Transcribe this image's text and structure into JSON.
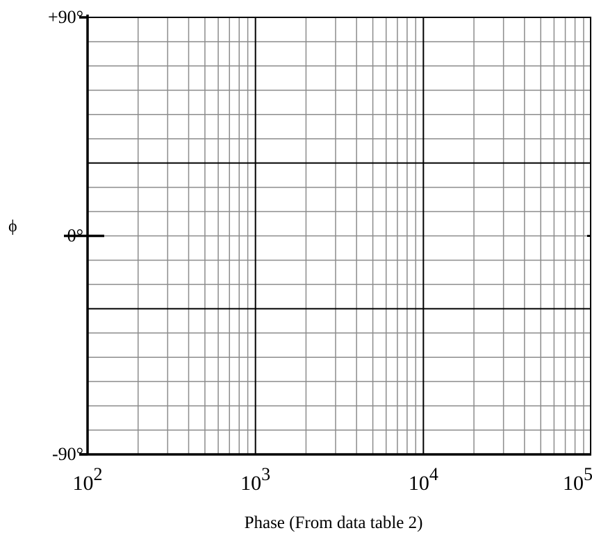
{
  "chart_data": {
    "type": "line",
    "title": "",
    "xlabel": "Phase (From data table 2)",
    "ylabel": "ϕ",
    "x_scale": "log",
    "xlim": [
      100,
      100000
    ],
    "ylim": [
      -90,
      90
    ],
    "grid": true,
    "x_ticks": [
      {
        "value": 100,
        "base": "10",
        "exp": "2"
      },
      {
        "value": 1000,
        "base": "10",
        "exp": "3"
      },
      {
        "value": 10000,
        "base": "10",
        "exp": "4"
      },
      {
        "value": 100000,
        "base": "10",
        "exp": "5"
      }
    ],
    "y_ticks": [
      {
        "value": 90,
        "label": "+90°"
      },
      {
        "value": 0,
        "label": "0°"
      },
      {
        "value": -90,
        "label": "-90°"
      }
    ],
    "series": []
  },
  "colors": {
    "major_grid": "#000000",
    "minor_grid": "#8c8c8c",
    "background": "#ffffff"
  }
}
